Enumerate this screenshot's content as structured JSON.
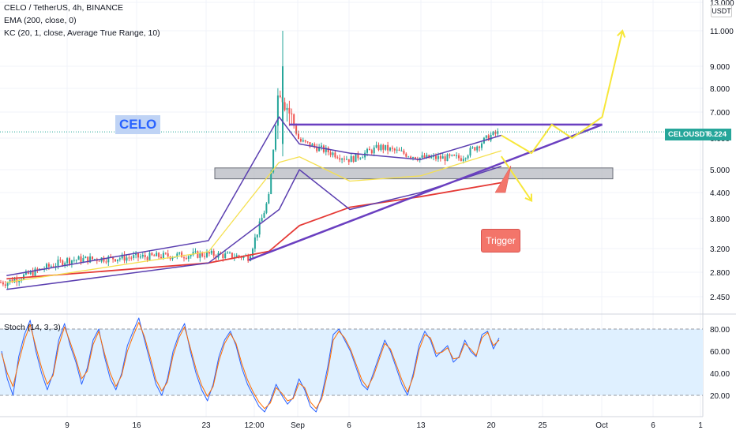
{
  "header": {
    "title": "CELO / TetherUS, 4h, BINANCE",
    "ema": "EMA (200, close, 0)",
    "kc": "KC (20, 1, close, Average True Range, 10)",
    "stoch": "Stoch (14, 3, 3)"
  },
  "currency": "USDT",
  "annotations": {
    "celo_label": "CELO",
    "trigger_label": "Trigger",
    "price_tag_symbol": "CELOUSDT",
    "price_tag_value": "6.224"
  },
  "colors": {
    "up": "#26a69a",
    "down": "#ef5350",
    "ema": "#e53935",
    "keltner": "#5b3fb0",
    "midline": "#f5e050",
    "trendline": "#6a3fc0",
    "projection": "#f7e73a",
    "zone_fill": "#b2b5be",
    "trigger_fill": "#f3756a",
    "stoch_k": "#2962ff",
    "stoch_d": "#ff6d00",
    "stoch_band": "#dff0ff"
  },
  "chart_data": [
    {
      "type": "candlestick",
      "title": "CELO / TetherUS, 4h, BINANCE",
      "y_scale": "log",
      "y_ticks": [
        "13.000",
        "11.000",
        "9.000",
        "8.000",
        "7.000",
        "6.000",
        "5.000",
        "4.400",
        "3.800",
        "3.200",
        "2.800",
        "2.450"
      ],
      "x_ticks": [
        "9",
        "16",
        "23",
        "12:00",
        "Sep",
        "6",
        "13",
        "20",
        "25",
        "Oct",
        "6",
        "1"
      ],
      "last_price": 6.224,
      "series": [
        {
          "name": "CELOUSDT",
          "x": [
            "Aug 3",
            "Aug 9",
            "Aug 16",
            "Aug 23",
            "Aug 27",
            "Aug 29",
            "Aug 30",
            "Sep 1",
            "Sep 6",
            "Sep 9",
            "Sep 13",
            "Sep 17",
            "Sep 20",
            "Sep 21"
          ],
          "close": [
            2.65,
            3.0,
            3.05,
            3.1,
            3.05,
            4.3,
            8.3,
            5.9,
            5.3,
            5.7,
            5.35,
            5.35,
            6.1,
            6.224
          ]
        },
        {
          "name": "EMA (200, close, 0)",
          "x": [
            "Aug 3",
            "Aug 23",
            "Aug 29",
            "Sep 1",
            "Sep 6",
            "Sep 13",
            "Sep 21"
          ],
          "values": [
            2.7,
            2.95,
            3.15,
            3.65,
            4.05,
            4.3,
            4.65
          ]
        },
        {
          "name": "KC (20, 1, close, Average True Range, 10)",
          "x": [
            "Aug 3",
            "Aug 23",
            "Aug 30",
            "Sep 1",
            "Sep 6",
            "Sep 13",
            "Sep 21"
          ],
          "upper": [
            2.75,
            3.35,
            6.8,
            5.8,
            5.5,
            5.3,
            6.1
          ],
          "lower": [
            2.55,
            2.95,
            4.0,
            5.0,
            4.0,
            4.4,
            5.1
          ]
        }
      ],
      "annotations": [
        "CELO",
        "Trigger"
      ],
      "zones": [
        {
          "from": 4.75,
          "to": 5.05
        }
      ],
      "trendlines": [
        {
          "from": [
            "Aug 27",
            3.0
          ],
          "to": [
            "Sep 21",
            5.2
          ],
          "extended_to": [
            "Oct 1",
            6.5
          ]
        },
        {
          "from": [
            "Aug 31",
            6.5
          ],
          "to": [
            "Oct 1",
            6.5
          ]
        }
      ],
      "projections": [
        {
          "path": [
            [
              "Sep 21",
              6.1
            ],
            [
              "Sep 24",
              5.5
            ],
            [
              "Sep 26",
              6.5
            ],
            [
              "Sep 28",
              6.0
            ],
            [
              "Oct 1",
              6.8
            ],
            [
              "Oct 3",
              11.0
            ]
          ]
        },
        {
          "path": [
            [
              "Sep 21",
              5.4
            ],
            [
              "Sep 24",
              4.2
            ]
          ]
        }
      ]
    },
    {
      "type": "line",
      "title": "Stoch (14, 3, 3)",
      "y_ticks": [
        "80.00",
        "60.00",
        "40.00",
        "20.00"
      ],
      "bands": [
        20,
        80
      ],
      "series": [
        {
          "name": "%K",
          "values": [
            60,
            35,
            20,
            55,
            75,
            88,
            60,
            40,
            25,
            40,
            70,
            85,
            65,
            50,
            30,
            45,
            70,
            80,
            55,
            35,
            25,
            40,
            65,
            78,
            90,
            70,
            50,
            30,
            20,
            35,
            60,
            75,
            85,
            60,
            40,
            25,
            15,
            30,
            55,
            70,
            78,
            65,
            45,
            30,
            20,
            10,
            5,
            15,
            30,
            20,
            12,
            18,
            35,
            25,
            10,
            5,
            20,
            45,
            75,
            80,
            70,
            60,
            45,
            30,
            25,
            40,
            55,
            70,
            60,
            45,
            30,
            20,
            40,
            65,
            78,
            70,
            55,
            60,
            65,
            50,
            55,
            70,
            60,
            55,
            75,
            78,
            62,
            72
          ]
        },
        {
          "name": "%D",
          "values": [
            58,
            40,
            28,
            50,
            70,
            84,
            64,
            45,
            30,
            38,
            65,
            82,
            68,
            53,
            35,
            42,
            66,
            78,
            58,
            40,
            28,
            38,
            60,
            74,
            86,
            73,
            54,
            34,
            24,
            32,
            56,
            72,
            82,
            63,
            44,
            29,
            19,
            28,
            51,
            67,
            76,
            67,
            49,
            34,
            23,
            14,
            8,
            13,
            27,
            22,
            15,
            17,
            31,
            27,
            14,
            8,
            17,
            40,
            70,
            78,
            72,
            62,
            48,
            34,
            27,
            37,
            52,
            67,
            62,
            48,
            34,
            23,
            37,
            61,
            75,
            72,
            58,
            59,
            63,
            53,
            54,
            67,
            62,
            56,
            72,
            77,
            65,
            70
          ]
        }
      ]
    }
  ]
}
